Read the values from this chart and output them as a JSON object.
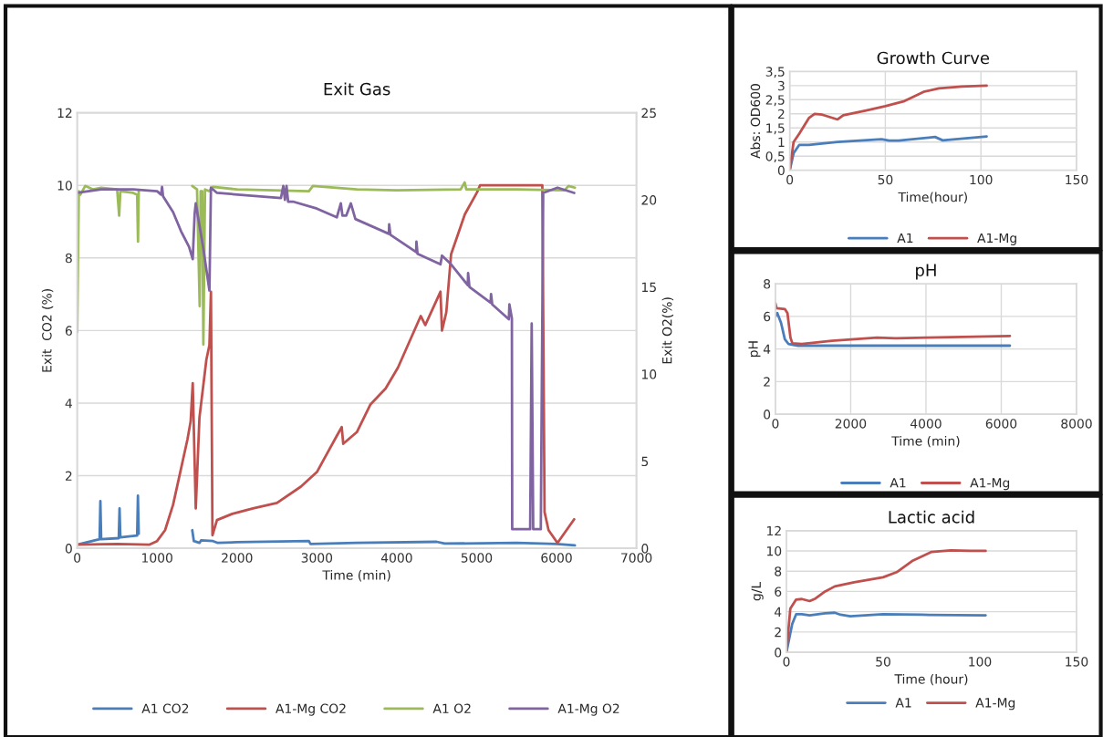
{
  "chart_data": [
    {
      "type": "line",
      "title": "Exit Gas",
      "xlabel": "Time (min)",
      "ylabel": "Exit  CO2 (%)",
      "y2label": "Exit O2(%)",
      "xlim": [
        0,
        7000
      ],
      "xticks": [
        0,
        1000,
        2000,
        3000,
        4000,
        5000,
        6000,
        7000
      ],
      "ylim": [
        0,
        12
      ],
      "yticks": [
        0,
        2,
        4,
        6,
        8,
        10,
        12
      ],
      "y2lim": [
        0,
        25
      ],
      "y2ticks": [
        0,
        5,
        10,
        15,
        20,
        25
      ],
      "grid": "y",
      "legend": "bottom",
      "series": [
        {
          "name": "A1 CO2",
          "color": "#4a7ebb",
          "x": [
            0,
            280,
            290,
            300,
            520,
            530,
            540,
            750,
            760,
            770,
            1100,
            1440,
            1460,
            1530,
            1550,
            1700,
            1760,
            2000,
            2900,
            2920,
            3500,
            4500,
            4600,
            5500,
            6000,
            6230
          ],
          "values": [
            0.1,
            0.25,
            1.3,
            0.25,
            0.28,
            1.1,
            0.3,
            0.35,
            1.45,
            0.4,
            null,
            0.5,
            0.2,
            0.15,
            0.22,
            0.2,
            0.15,
            0.17,
            0.2,
            0.12,
            0.15,
            0.18,
            0.13,
            0.15,
            0.12,
            0.08
          ]
        },
        {
          "name": "A1-Mg CO2",
          "color": "#c0504d",
          "x": [
            0,
            500,
            900,
            1000,
            1100,
            1200,
            1300,
            1380,
            1420,
            1446,
            1484,
            1530,
            1617,
            1655,
            1674,
            1693,
            1750,
            1940,
            2200,
            2500,
            2800,
            3000,
            3100,
            3250,
            3311,
            3330,
            3500,
            3672,
            3860,
            4015,
            4300,
            4357,
            4547,
            4566,
            4620,
            4680,
            4852,
            5003,
            5042,
            5822,
            5850,
            5900,
            6012,
            6221
          ],
          "values": [
            0.1,
            0.12,
            0.1,
            0.2,
            0.5,
            1.2,
            2.2,
            3.0,
            3.5,
            4.55,
            1.1,
            3.6,
            5.2,
            5.6,
            7.07,
            0.36,
            0.78,
            0.95,
            1.1,
            1.25,
            1.7,
            2.1,
            2.5,
            3.1,
            3.34,
            2.88,
            3.2,
            3.97,
            4.4,
            4.98,
            6.4,
            6.15,
            7.07,
            6.0,
            6.5,
            8.1,
            9.2,
            9.8,
            10.0,
            10.0,
            1.0,
            0.5,
            0.15,
            0.8
          ]
        },
        {
          "name": "A1 O2",
          "color": "#9bbb59",
          "axis": "y2",
          "x": [
            0,
            20,
            40,
            100,
            200,
            300,
            500,
            525,
            540,
            700,
            750,
            761,
            770,
            1100,
            1440,
            1500,
            1533,
            1545,
            1565,
            1579,
            1600,
            1650,
            1700,
            2000,
            2900,
            2950,
            3500,
            4000,
            4800,
            4850,
            4870,
            5500,
            6100,
            6150,
            6230
          ],
          "values": [
            12.4,
            20.5,
            20.3,
            20.8,
            20.6,
            20.7,
            20.6,
            19.1,
            20.5,
            20.4,
            20.3,
            17.6,
            20.5,
            null,
            20.8,
            20.6,
            13.9,
            20.5,
            20.5,
            11.7,
            20.6,
            20.5,
            20.75,
            20.6,
            20.5,
            20.8,
            20.6,
            20.55,
            20.6,
            21.0,
            20.6,
            20.6,
            20.55,
            20.8,
            20.7
          ]
        },
        {
          "name": "A1-Mg O2",
          "color": "#8064a2",
          "axis": "y2",
          "x": [
            0,
            300,
            700,
            1000,
            1050,
            1062,
            1075,
            1200,
            1300,
            1400,
            1446,
            1470,
            1484,
            1579,
            1655,
            1674,
            1750,
            2550,
            2580,
            2600,
            2620,
            2640,
            2700,
            3000,
            3250,
            3300,
            3320,
            3368,
            3425,
            3482,
            3901,
            3905,
            3920,
            4243,
            4246,
            4260,
            4547,
            4566,
            4680,
            4889,
            4893,
            4910,
            5175,
            5180,
            5195,
            5403,
            5410,
            5441,
            5445,
            5670,
            5689,
            5708,
            5803,
            5833,
            6012,
            6221
          ],
          "values": [
            20.4,
            20.6,
            20.6,
            20.5,
            20.3,
            20.75,
            20.2,
            19.3,
            18.2,
            17.3,
            16.6,
            19.2,
            19.8,
            17.2,
            14.8,
            20.7,
            20.4,
            20.1,
            20.8,
            20.0,
            20.8,
            19.9,
            19.9,
            19.5,
            19.0,
            19.8,
            19.1,
            19.1,
            19.8,
            18.9,
            18.05,
            18.6,
            18.0,
            17.0,
            17.6,
            16.9,
            16.3,
            16.8,
            16.3,
            15.1,
            15.8,
            15.0,
            14.1,
            14.6,
            14.0,
            13.15,
            14.0,
            13.2,
            1.1,
            1.1,
            12.9,
            1.1,
            1.1,
            20.4,
            20.7,
            20.4
          ]
        }
      ]
    },
    {
      "type": "line",
      "title": "Growth Curve",
      "xlabel": "Time(hour)",
      "ylabel": "Abs: OD600",
      "xlim": [
        0,
        150
      ],
      "xticks": [
        0,
        50,
        100,
        150
      ],
      "ylim": [
        0,
        3.5
      ],
      "yticks": [
        0,
        {
          "value": 0.5,
          "label": "0,5"
        },
        1,
        {
          "value": 1.5,
          "label": "1,5"
        },
        2,
        {
          "value": 2.5,
          "label": "2,5"
        },
        3,
        {
          "value": 3.5,
          "label": "3,5"
        }
      ],
      "grid": true,
      "legend": "bottom",
      "series": [
        {
          "name": "A1",
          "color": "#4a7ebb",
          "x": [
            0,
            2,
            5,
            10,
            25,
            48,
            52,
            57,
            76,
            80,
            103
          ],
          "values": [
            0,
            0.6,
            0.9,
            0.9,
            1.0,
            1.1,
            1.05,
            1.05,
            1.18,
            1.06,
            1.2
          ]
        },
        {
          "name": "A1-Mg",
          "color": "#c0504d",
          "x": [
            0,
            2,
            5,
            10,
            13,
            17,
            25,
            28,
            40,
            50,
            60,
            70,
            78,
            90,
            103
          ],
          "values": [
            0,
            1.0,
            1.3,
            1.85,
            2.0,
            1.97,
            1.8,
            1.95,
            2.12,
            2.27,
            2.45,
            2.78,
            2.9,
            2.97,
            3.0
          ]
        }
      ]
    },
    {
      "type": "line",
      "title": "pH",
      "xlabel": "Time (min)",
      "ylabel": "pH",
      "xlim": [
        0,
        8000
      ],
      "xticks": [
        0,
        2000,
        4000,
        6000,
        8000
      ],
      "ylim": [
        0,
        8
      ],
      "yticks": [
        0,
        2,
        4,
        6,
        8
      ],
      "grid": true,
      "legend": "bottom",
      "series": [
        {
          "name": "A1",
          "color": "#4a7ebb",
          "x": [
            0,
            50,
            150,
            250,
            350,
            600,
            6230
          ],
          "values": [
            6.0,
            6.2,
            5.6,
            4.6,
            4.3,
            4.2,
            4.2
          ]
        },
        {
          "name": "A1-Mg",
          "color": "#c0504d",
          "x": [
            0,
            30,
            250,
            320,
            400,
            450,
            700,
            1500,
            2700,
            3200,
            4000,
            6230
          ],
          "values": [
            6.8,
            6.5,
            6.45,
            6.2,
            4.7,
            4.35,
            4.3,
            4.5,
            4.7,
            4.65,
            4.7,
            4.8
          ]
        }
      ]
    },
    {
      "type": "line",
      "title": "Lactic acid",
      "xlabel": "Time (hour)",
      "ylabel": "g/L",
      "xlim": [
        0,
        150
      ],
      "xticks": [
        0,
        50,
        100,
        150
      ],
      "ylim": [
        0,
        12
      ],
      "yticks": [
        0,
        2,
        4,
        6,
        8,
        10,
        12
      ],
      "grid": "y",
      "legend": "bottom",
      "series": [
        {
          "name": "A1",
          "color": "#4a7ebb",
          "x": [
            0,
            3,
            5,
            8,
            12,
            20,
            25,
            28,
            33,
            50,
            70,
            103
          ],
          "values": [
            0,
            2.8,
            3.75,
            3.75,
            3.65,
            3.85,
            3.9,
            3.7,
            3.55,
            3.75,
            3.7,
            3.65
          ]
        },
        {
          "name": "A1-Mg",
          "color": "#c0504d",
          "x": [
            0,
            2,
            5,
            8,
            12,
            15,
            20,
            25,
            35,
            50,
            57,
            65,
            75,
            85,
            95,
            103
          ],
          "values": [
            0,
            4.3,
            5.2,
            5.25,
            5.05,
            5.3,
            6.0,
            6.5,
            6.9,
            7.4,
            7.9,
            9.0,
            9.9,
            10.05,
            10.0,
            10.0
          ]
        }
      ]
    }
  ]
}
